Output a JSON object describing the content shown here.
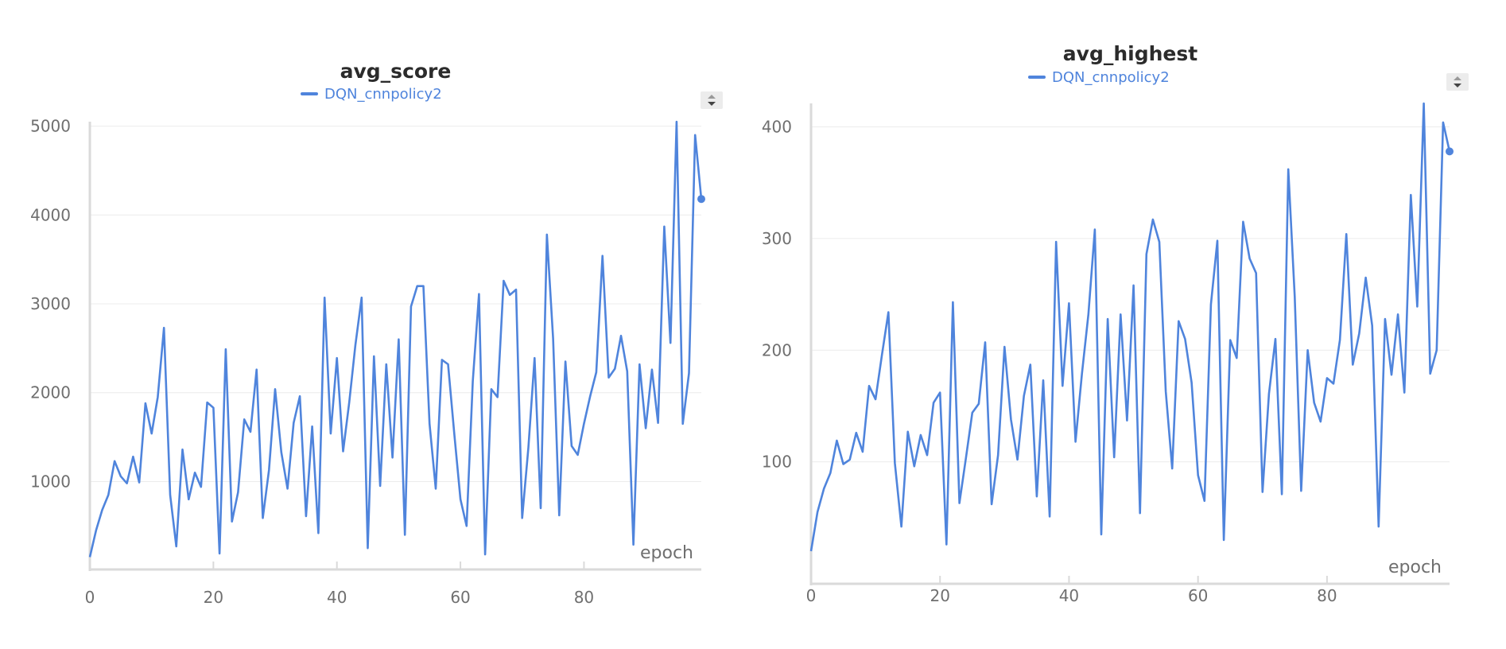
{
  "chart_data": [
    {
      "type": "line",
      "title": "avg_score",
      "xlabel": "epoch",
      "ylabel": "",
      "xlim": [
        0,
        99
      ],
      "ylim": [
        100,
        5050
      ],
      "xticks": [
        0,
        20,
        40,
        60,
        80
      ],
      "yticks": [
        1000,
        2000,
        3000,
        4000,
        5000
      ],
      "grid": true,
      "legend_position": "top-center",
      "series": [
        {
          "name": "DQN_cnnpolicy2",
          "color": "#4f84dc",
          "x": [
            0,
            1,
            2,
            3,
            4,
            5,
            6,
            7,
            8,
            9,
            10,
            11,
            12,
            13,
            14,
            15,
            16,
            17,
            18,
            19,
            20,
            21,
            22,
            23,
            24,
            25,
            26,
            27,
            28,
            29,
            30,
            31,
            32,
            33,
            34,
            35,
            36,
            37,
            38,
            39,
            40,
            41,
            42,
            43,
            44,
            45,
            46,
            47,
            48,
            49,
            50,
            51,
            52,
            53,
            54,
            55,
            56,
            57,
            58,
            59,
            60,
            61,
            62,
            63,
            64,
            65,
            66,
            67,
            68,
            69,
            70,
            71,
            72,
            73,
            74,
            75,
            76,
            77,
            78,
            79,
            80,
            81,
            82,
            83,
            84,
            85,
            86,
            87,
            88,
            89,
            90,
            91,
            92,
            93,
            94,
            95,
            96,
            97,
            98,
            99
          ],
          "values": [
            150,
            450,
            680,
            850,
            1230,
            1060,
            980,
            1280,
            990,
            1880,
            1540,
            1950,
            2730,
            850,
            270,
            1360,
            800,
            1100,
            940,
            1890,
            1830,
            190,
            2490,
            550,
            880,
            1700,
            1560,
            2260,
            590,
            1130,
            2040,
            1330,
            920,
            1660,
            1960,
            610,
            1620,
            420,
            3070,
            1540,
            2390,
            1340,
            1890,
            2540,
            3070,
            250,
            2410,
            950,
            2320,
            1270,
            2600,
            400,
            2970,
            3200,
            3200,
            1650,
            920,
            2370,
            2320,
            1540,
            800,
            500,
            2130,
            3110,
            180,
            2040,
            1950,
            3260,
            3100,
            3160,
            590,
            1380,
            2390,
            700,
            3780,
            2610,
            620,
            2350,
            1400,
            1300,
            1650,
            1960,
            2230,
            3540,
            2170,
            2270,
            2640,
            2240,
            290,
            2320,
            1600,
            2260,
            1660,
            3870,
            2560,
            5050,
            1650,
            2220,
            4900,
            4180
          ]
        }
      ]
    },
    {
      "type": "line",
      "title": "avg_highest",
      "xlabel": "epoch",
      "ylabel": "",
      "xlim": [
        0,
        99
      ],
      "ylim": [
        15,
        421
      ],
      "xticks": [
        0,
        20,
        40,
        60,
        80
      ],
      "yticks": [
        100,
        200,
        300,
        400
      ],
      "grid": true,
      "legend_position": "top-center",
      "series": [
        {
          "name": "DQN_cnnpolicy2",
          "color": "#4f84dc",
          "x": [
            0,
            1,
            2,
            3,
            4,
            5,
            6,
            7,
            8,
            9,
            10,
            11,
            12,
            13,
            14,
            15,
            16,
            17,
            18,
            19,
            20,
            21,
            22,
            23,
            24,
            25,
            26,
            27,
            28,
            29,
            30,
            31,
            32,
            33,
            34,
            35,
            36,
            37,
            38,
            39,
            40,
            41,
            42,
            43,
            44,
            45,
            46,
            47,
            48,
            49,
            50,
            51,
            52,
            53,
            54,
            55,
            56,
            57,
            58,
            59,
            60,
            61,
            62,
            63,
            64,
            65,
            66,
            67,
            68,
            69,
            70,
            71,
            72,
            73,
            74,
            75,
            76,
            77,
            78,
            79,
            80,
            81,
            82,
            83,
            84,
            85,
            86,
            87,
            88,
            89,
            90,
            91,
            92,
            93,
            94,
            95,
            96,
            97,
            98,
            99
          ],
          "values": [
            20,
            55,
            76,
            90,
            119,
            98,
            102,
            126,
            109,
            168,
            156,
            196,
            234,
            99,
            42,
            127,
            96,
            124,
            106,
            153,
            162,
            26,
            243,
            63,
            103,
            144,
            152,
            207,
            62,
            106,
            203,
            138,
            102,
            159,
            187,
            69,
            173,
            51,
            297,
            168,
            242,
            118,
            179,
            232,
            308,
            35,
            228,
            104,
            232,
            137,
            258,
            54,
            286,
            317,
            297,
            163,
            94,
            226,
            210,
            171,
            88,
            65,
            241,
            298,
            30,
            209,
            193,
            315,
            282,
            269,
            73,
            161,
            210,
            71,
            362,
            248,
            74,
            200,
            153,
            136,
            175,
            170,
            209,
            304,
            187,
            215,
            265,
            222,
            42,
            228,
            178,
            232,
            162,
            339,
            239,
            421,
            179,
            200,
            404,
            378
          ]
        }
      ]
    }
  ],
  "control_icon": "sort-arrows-icon"
}
